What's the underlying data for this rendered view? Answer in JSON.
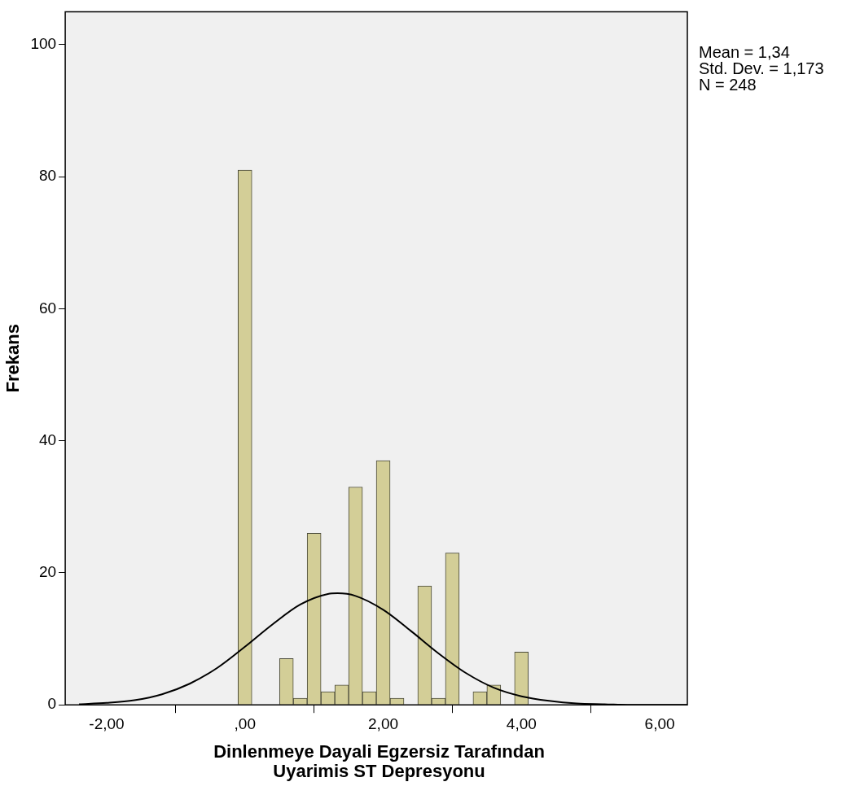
{
  "chart_data": {
    "type": "histogram",
    "xlabel": "Dinlenmeye Dayali Egzersiz Tarafından Uyarimis ST Depresyonu",
    "ylabel": "Frekans",
    "color": "#d3ce97",
    "bins": [
      -0.1,
      0.1,
      0.3,
      0.5,
      0.7,
      0.9,
      1.1,
      1.3,
      1.5,
      1.7,
      1.9,
      2.1,
      2.3,
      2.5,
      2.7,
      2.9,
      3.1,
      3.3,
      3.5,
      3.7,
      3.9,
      4.1
    ],
    "values": [
      81,
      0,
      0,
      7,
      1,
      26,
      2,
      3,
      33,
      2,
      37,
      1,
      0,
      18,
      1,
      23,
      0,
      2,
      3,
      0,
      8
    ],
    "series": [
      {
        "type": "line",
        "color": "#000000",
        "x": [
          -2.4,
          -2.0,
          -1.6,
          -1.2,
          -0.8,
          -0.4,
          0,
          0.4,
          0.8,
          1.2,
          1.34,
          1.6,
          2.0,
          2.4,
          2.8,
          3.2,
          3.6,
          4.0,
          4.4,
          4.8,
          5.2,
          5.6,
          6.0,
          6.4
        ],
        "values": [
          0.1,
          0.3,
          0.7,
          1.6,
          3.2,
          5.6,
          8.8,
          12.2,
          15.2,
          16.8,
          16.9,
          16.5,
          14.4,
          11.2,
          7.8,
          4.8,
          2.6,
          1.3,
          0.6,
          0.2,
          0.1,
          0,
          0,
          0
        ]
      }
    ],
    "xlim": [
      -2.6,
      6.4
    ],
    "ylim": [
      0,
      105
    ],
    "xticks": [
      {
        "value": -2,
        "label": "-2,00"
      },
      {
        "value": 0,
        "label": ",00"
      },
      {
        "value": 2,
        "label": "2,00"
      },
      {
        "value": 4,
        "label": "4,00"
      },
      {
        "value": 6,
        "label": "6,00"
      }
    ],
    "yticks": [
      0,
      20,
      40,
      60,
      80,
      100
    ],
    "grid": false,
    "legend": false,
    "marker": "none",
    "annotations": [
      "Mean = 1,34",
      "Std. Dev. = 1,173",
      "N = 248"
    ]
  }
}
